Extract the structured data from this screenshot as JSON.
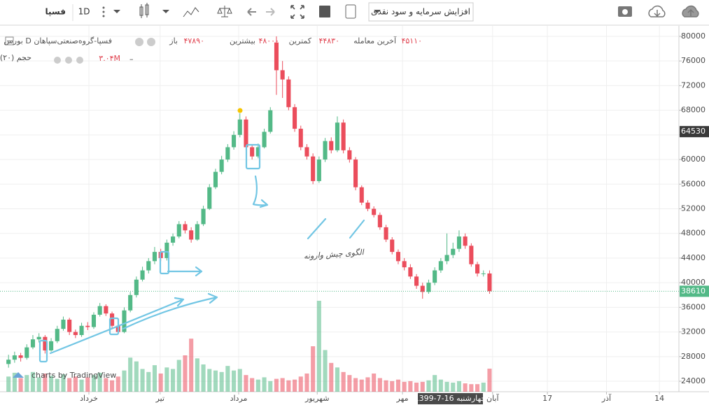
{
  "toolbar": {
    "symbol": "فسپا",
    "interval": "1D",
    "event_menu": "افزایش سرمایه و سود نقدی"
  },
  "chart_data": {
    "type": "candlestick",
    "title": "بورس D فسپا-گروه‌صنعتی‌سپاهان",
    "legend_items": [
      "۴۵۱۱۰",
      "آخرین معامله",
      "۴۴۸۳۰",
      "کمترین",
      "۴۸۰۰۰",
      "بیشترین",
      "۴۷۸۹۰",
      "باز"
    ],
    "volume_label": "حجم (۲۰)",
    "volume_value": "۳.۰۴M",
    "watermark": "charts by TradingView",
    "annotation": "الگوی چیش وارونه",
    "date_label": "چهارشنبه 16-7-1399",
    "up_color": "#53b987",
    "down_color": "#eb4d5c",
    "grid": true,
    "open": [
      26800,
      27500,
      28200,
      27800,
      29500,
      30800,
      31200,
      29000,
      30500,
      32500,
      34000,
      32000,
      31500,
      33000,
      32800,
      34800,
      36200,
      35000,
      33000,
      32000,
      35500,
      38000,
      40500,
      42000,
      43500,
      45000,
      44000,
      46500,
      47500,
      49500,
      48500,
      47000,
      49500,
      52000,
      55500,
      58000,
      60000,
      62000,
      64000,
      66500,
      62000,
      60500,
      62000,
      64500,
      79000,
      74500,
      73000,
      68500,
      65000,
      62000,
      60500,
      56500,
      60000,
      63000,
      61500,
      66000,
      61500,
      60000,
      55500,
      53000,
      52000,
      51000,
      49000,
      47000,
      45000,
      43500,
      42500,
      41000,
      39500,
      38500,
      40000,
      42000,
      43500,
      44500,
      45500,
      47500,
      46000,
      43000,
      41500,
      41500
    ],
    "high": [
      28300,
      28800,
      28600,
      30000,
      31500,
      31800,
      31500,
      31000,
      33000,
      34500,
      34300,
      32400,
      33500,
      33600,
      35200,
      36700,
      36500,
      35300,
      33400,
      36000,
      38500,
      41000,
      42600,
      44000,
      45800,
      45500,
      47000,
      48000,
      50000,
      50000,
      49000,
      50000,
      52500,
      56000,
      58500,
      60600,
      62500,
      64600,
      67500,
      67000,
      62400,
      62600,
      65000,
      68500,
      80000,
      76000,
      73500,
      69000,
      65500,
      62500,
      61000,
      60500,
      63500,
      63600,
      67000,
      66500,
      62000,
      60400,
      55800,
      53400,
      52400,
      51400,
      49400,
      47400,
      45400,
      44000,
      43000,
      41400,
      40000,
      40500,
      42500,
      44000,
      48000,
      46500,
      48500,
      48000,
      46400,
      43400,
      42000,
      42000
    ],
    "low": [
      26200,
      27000,
      27200,
      27500,
      29200,
      30300,
      28500,
      28800,
      30200,
      32200,
      31500,
      31000,
      31200,
      32300,
      32500,
      34500,
      34600,
      32600,
      31600,
      31800,
      35200,
      37600,
      40200,
      41500,
      43000,
      43500,
      43600,
      46000,
      47200,
      48000,
      46500,
      46800,
      49200,
      51800,
      55200,
      57600,
      59600,
      61600,
      63600,
      61500,
      60000,
      60200,
      61800,
      64200,
      70500,
      70000,
      68000,
      64500,
      61500,
      60000,
      56000,
      56200,
      59600,
      61000,
      61200,
      61000,
      59500,
      55000,
      52600,
      51600,
      50600,
      48600,
      46600,
      44600,
      43000,
      42000,
      40600,
      39000,
      37400,
      38200,
      39600,
      41600,
      43000,
      44000,
      45000,
      45500,
      42600,
      41000,
      41000,
      38200
    ],
    "close": [
      27500,
      28200,
      27800,
      29500,
      30800,
      31200,
      29000,
      30500,
      32500,
      34000,
      32000,
      31500,
      33000,
      32800,
      34800,
      36200,
      35000,
      33000,
      32000,
      35500,
      38000,
      40500,
      42000,
      43500,
      45000,
      44000,
      46500,
      47500,
      49500,
      48500,
      47000,
      49500,
      52000,
      55500,
      58000,
      60000,
      62000,
      64000,
      66500,
      62000,
      60500,
      62000,
      64500,
      68000,
      74500,
      73000,
      68500,
      65000,
      62000,
      60500,
      56500,
      60000,
      63000,
      61500,
      66000,
      61500,
      60000,
      55500,
      53000,
      52000,
      51000,
      49000,
      47000,
      45000,
      43500,
      42500,
      41000,
      39500,
      38500,
      40000,
      42000,
      43500,
      44500,
      45500,
      47500,
      46000,
      43000,
      41500,
      41500,
      38610
    ],
    "volume": [
      2,
      2.5,
      1.8,
      2.2,
      2.6,
      1.9,
      2.4,
      2.1,
      1.7,
      2.3,
      1.8,
      2.0,
      1.6,
      1.9,
      2.2,
      2.5,
      1.8,
      1.5,
      2.0,
      2.8,
      4.5,
      4.0,
      3.0,
      2.6,
      3.5,
      2.4,
      3.2,
      3.0,
      4.2,
      4.8,
      7.0,
      4.4,
      3.6,
      3.0,
      2.8,
      2.6,
      3.4,
      2.8,
      3.0,
      2.2,
      1.8,
      1.6,
      1.9,
      1.4,
      1.7,
      1.8,
      1.5,
      1.6,
      2.0,
      2.4,
      6.0,
      12.0,
      5.5,
      3.8,
      3.2,
      2.6,
      2.2,
      1.8,
      1.6,
      1.9,
      2.4,
      1.8,
      1.5,
      1.4,
      1.6,
      1.3,
      1.4,
      1.2,
      1.3,
      1.5,
      2.2,
      1.6,
      1.3,
      1.2,
      1.4,
      1.1,
      1.0,
      1.0,
      1.2,
      3.04
    ],
    "ylim": [
      22300,
      81700
    ],
    "yticks": [
      24000,
      28000,
      32000,
      36000,
      40000,
      44000,
      48000,
      52000,
      56000,
      60000,
      64000,
      68000,
      72000,
      76000,
      80000
    ],
    "xlim": [
      -1.4,
      110.1
    ],
    "xticks": [
      {
        "value": 13.2,
        "label": "خرداد"
      },
      {
        "value": 24.9,
        "label": "تیر"
      },
      {
        "value": 37.8,
        "label": "مرداد"
      },
      {
        "value": 50.7,
        "label": "شهریور"
      },
      {
        "value": 64.7,
        "label": "مهر"
      },
      {
        "value": 79.5,
        "label": "آبان"
      },
      {
        "value": 88.5,
        "label": "17"
      },
      {
        "value": 98.2,
        "label": "آذر"
      },
      {
        "value": 106.9,
        "label": "14"
      }
    ],
    "last_price": 38610,
    "marker_price": 64530
  }
}
